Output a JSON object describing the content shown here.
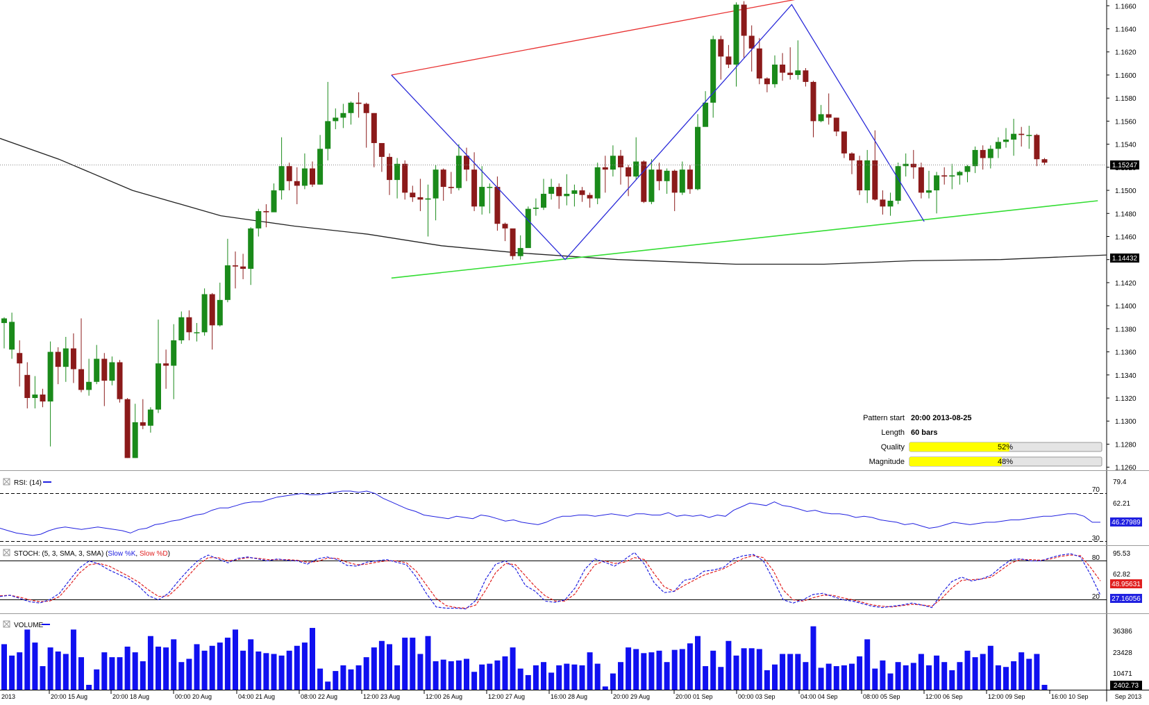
{
  "colors": {
    "bull": "#1a8a1a",
    "bear": "#8b1a1a",
    "ma": "#222222",
    "pattern": "#2b2bd9",
    "upper_line": "#e83030",
    "lower_line": "#33dd33",
    "rsi": "#2020e0",
    "stoch_k": "#2020e0",
    "stoch_d": "#e02020",
    "volume": "#1010f0",
    "bar_yellow": "#ffff00"
  },
  "price_axis": {
    "ticks": [
      "1.1660",
      "1.1640",
      "1.1620",
      "1.1600",
      "1.1580",
      "1.1560",
      "1.1540",
      "1.1520",
      "1.1500",
      "1.1480",
      "1.1460",
      "1.1440",
      "1.1420",
      "1.1400",
      "1.1380",
      "1.1360",
      "1.1340",
      "1.1320",
      "1.1300",
      "1.1280",
      "1.1260"
    ],
    "current_label": "1.15247",
    "ma_label": "1.14432"
  },
  "time_axis": {
    "labels": [
      "2013",
      "20:00 15 Aug",
      "20:00 18 Aug",
      "00:00 20 Aug",
      "04:00 21 Aug",
      "08:00 22 Aug",
      "12:00 23 Aug",
      "12:00 26 Aug",
      "12:00 27 Aug",
      "16:00 28 Aug",
      "20:00 29 Aug",
      "20:00 01 Sep",
      "00:00 03 Sep",
      "04:00 04 Sep",
      "08:00 05 Sep",
      "12:00 06 Sep",
      "12:00 09 Sep",
      "16:00 10 Sep",
      "Sep 2013"
    ]
  },
  "info": {
    "pattern_start_label": "Pattern start",
    "pattern_start_value": "20:00 2013-08-25",
    "length_label": "Length",
    "length_value": "60 bars",
    "quality_label": "Quality",
    "quality_value": "52%",
    "quality_fraction": 0.52,
    "magnitude_label": "Magnitude",
    "magnitude_value": "48%",
    "magnitude_fraction": 0.48
  },
  "rsi": {
    "title": "RSI: (14)",
    "axis": [
      "79.4",
      "62.21"
    ],
    "level_high": "70",
    "level_low": "30",
    "current": "46.27989"
  },
  "stoch": {
    "title_prefix": "STOCH: (5, 3, SMA, 3, SMA) (",
    "k_label": "Slow %K",
    "separator": ", ",
    "d_label": "Slow %D",
    "title_suffix": ")",
    "axis": [
      "95.53",
      "62.82"
    ],
    "level_high": "80",
    "level_low": "20",
    "current_d": "48.95631",
    "current_k": "27.16056"
  },
  "volume": {
    "title": "VOLUME",
    "axis": [
      "36386",
      "23428",
      "10471"
    ],
    "current": "2402.73"
  },
  "chart_data": {
    "type": "candlestick",
    "symbol_timeframe": "",
    "y_range": [
      1.1258,
      1.1665
    ],
    "current_price": 1.15247,
    "moving_average_last": 1.14432,
    "candles": [
      [
        1.1385,
        1.1389,
        1.139,
        1.1363
      ],
      [
        1.1362,
        1.1386,
        1.1394,
        1.1354
      ],
      [
        1.1359,
        1.135,
        1.137,
        1.133
      ],
      [
        1.134,
        1.132,
        1.1351,
        1.1311
      ],
      [
        1.132,
        1.1323,
        1.1339,
        1.1311
      ],
      [
        1.1323,
        1.1317,
        1.1328,
        1.1312
      ],
      [
        1.1317,
        1.136,
        1.1369,
        1.1278
      ],
      [
        1.136,
        1.1347,
        1.1364,
        1.1332
      ],
      [
        1.1347,
        1.1363,
        1.1373,
        1.1334
      ],
      [
        1.1363,
        1.1345,
        1.1376,
        1.1333
      ],
      [
        1.1345,
        1.1327,
        1.1389,
        1.1325
      ],
      [
        1.1327,
        1.1334,
        1.1354,
        1.1322
      ],
      [
        1.1334,
        1.1354,
        1.1366,
        1.1332
      ],
      [
        1.1354,
        1.1335,
        1.1359,
        1.1313
      ],
      [
        1.1335,
        1.1351,
        1.1356,
        1.1331
      ],
      [
        1.1351,
        1.1319,
        1.1353,
        1.1316
      ],
      [
        1.1319,
        1.1268,
        1.132,
        1.1268
      ],
      [
        1.1268,
        1.1299,
        1.1315,
        1.1268
      ],
      [
        1.1299,
        1.1296,
        1.1319,
        1.1293
      ],
      [
        1.1296,
        1.131,
        1.1312,
        1.129
      ],
      [
        1.131,
        1.135,
        1.1388,
        1.1307
      ],
      [
        1.135,
        1.1348,
        1.1362,
        1.1328
      ],
      [
        1.1348,
        1.137,
        1.1384,
        1.1319
      ],
      [
        1.137,
        1.139,
        1.1395,
        1.1367
      ],
      [
        1.139,
        1.1377,
        1.1396,
        1.137
      ],
      [
        1.1377,
        1.1377,
        1.1385,
        1.1369
      ],
      [
        1.1377,
        1.141,
        1.1415,
        1.1374
      ],
      [
        1.141,
        1.1383,
        1.1411,
        1.1362
      ],
      [
        1.1383,
        1.1405,
        1.142,
        1.1382
      ],
      [
        1.1405,
        1.1435,
        1.1458,
        1.1403
      ],
      [
        1.1435,
        1.1434,
        1.1447,
        1.1415
      ],
      [
        1.1434,
        1.1432,
        1.1445,
        1.1423
      ],
      [
        1.1432,
        1.1467,
        1.1468,
        1.1418
      ],
      [
        1.1467,
        1.1482,
        1.1484,
        1.146
      ],
      [
        1.1482,
        1.1481,
        1.1488,
        1.1468
      ],
      [
        1.1481,
        1.15,
        1.1506,
        1.149
      ],
      [
        1.15,
        1.1521,
        1.1546,
        1.1492
      ],
      [
        1.1521,
        1.1508,
        1.1524,
        1.15
      ],
      [
        1.1508,
        1.1504,
        1.152,
        1.1488
      ],
      [
        1.1504,
        1.1519,
        1.1532,
        1.1501
      ],
      [
        1.1519,
        1.1505,
        1.1525,
        1.1503
      ],
      [
        1.1505,
        1.1536,
        1.1548,
        1.1505
      ],
      [
        1.1536,
        1.156,
        1.1594,
        1.1526
      ],
      [
        1.156,
        1.1563,
        1.1571,
        1.1553
      ],
      [
        1.1563,
        1.1567,
        1.1575,
        1.1554
      ],
      [
        1.1567,
        1.1576,
        1.1577,
        1.1557
      ],
      [
        1.1576,
        1.1575,
        1.1585,
        1.1563
      ],
      [
        1.1575,
        1.1567,
        1.1576,
        1.1537
      ],
      [
        1.1567,
        1.1541,
        1.1567,
        1.152
      ],
      [
        1.1541,
        1.1529,
        1.154,
        1.1516
      ],
      [
        1.1529,
        1.1509,
        1.1532,
        1.1496
      ],
      [
        1.1509,
        1.1523,
        1.1528,
        1.1493
      ],
      [
        1.1523,
        1.1498,
        1.1526,
        1.1492
      ],
      [
        1.1498,
        1.1494,
        1.1504,
        1.149
      ],
      [
        1.1494,
        1.1492,
        1.151,
        1.1482
      ],
      [
        1.1492,
        1.1493,
        1.1505,
        1.146
      ],
      [
        1.1493,
        1.1518,
        1.1522,
        1.1474
      ],
      [
        1.1518,
        1.1503,
        1.1519,
        1.1491
      ],
      [
        1.1503,
        1.1502,
        1.1516,
        1.1497
      ],
      [
        1.1502,
        1.153,
        1.154,
        1.15
      ],
      [
        1.153,
        1.1518,
        1.1537,
        1.1508
      ],
      [
        1.1518,
        1.1486,
        1.1533,
        1.1482
      ],
      [
        1.1486,
        1.1503,
        1.1521,
        1.1479
      ],
      [
        1.1503,
        1.1503,
        1.1506,
        1.148
      ],
      [
        1.1503,
        1.1471,
        1.1512,
        1.1465
      ],
      [
        1.1471,
        1.1467,
        1.1472,
        1.1456
      ],
      [
        1.1467,
        1.1443,
        1.1461,
        1.144
      ],
      [
        1.1443,
        1.145,
        1.1461,
        1.144
      ],
      [
        1.145,
        1.1484,
        1.1486,
        1.1452
      ],
      [
        1.1484,
        1.1485,
        1.1493,
        1.1478
      ],
      [
        1.1485,
        1.1497,
        1.151,
        1.1483
      ],
      [
        1.1497,
        1.1503,
        1.151,
        1.1492
      ],
      [
        1.1503,
        1.1495,
        1.1506,
        1.1484
      ],
      [
        1.1495,
        1.1497,
        1.1514,
        1.1487
      ],
      [
        1.1497,
        1.15,
        1.1505,
        1.1486
      ],
      [
        1.15,
        1.1496,
        1.1503,
        1.149
      ],
      [
        1.1496,
        1.1493,
        1.1498,
        1.1485
      ],
      [
        1.1493,
        1.152,
        1.1524,
        1.1488
      ],
      [
        1.152,
        1.1518,
        1.153,
        1.1498
      ],
      [
        1.1518,
        1.153,
        1.1539,
        1.1512
      ],
      [
        1.153,
        1.152,
        1.1535,
        1.1505
      ],
      [
        1.152,
        1.1512,
        1.1522,
        1.1495
      ],
      [
        1.1512,
        1.1525,
        1.1546,
        1.1509
      ],
      [
        1.1525,
        1.149,
        1.1526,
        1.1489
      ],
      [
        1.149,
        1.1518,
        1.1527,
        1.1488
      ],
      [
        1.1518,
        1.1508,
        1.1524,
        1.15
      ],
      [
        1.1508,
        1.1517,
        1.1519,
        1.1497
      ],
      [
        1.1517,
        1.1498,
        1.1518,
        1.1482
      ],
      [
        1.1498,
        1.1518,
        1.1525,
        1.1496
      ],
      [
        1.1518,
        1.1501,
        1.1522,
        1.1497
      ],
      [
        1.1501,
        1.1555,
        1.1566,
        1.15
      ],
      [
        1.1555,
        1.1576,
        1.1586,
        1.1556
      ],
      [
        1.1576,
        1.1631,
        1.1634,
        1.1563
      ],
      [
        1.1631,
        1.1616,
        1.1634,
        1.1596
      ],
      [
        1.1616,
        1.1609,
        1.1626,
        1.1606
      ],
      [
        1.1609,
        1.1661,
        1.1663,
        1.159
      ],
      [
        1.1661,
        1.1634,
        1.1664,
        1.1615
      ],
      [
        1.1634,
        1.1623,
        1.1643,
        1.1603
      ],
      [
        1.1623,
        1.1597,
        1.1632,
        1.1592
      ],
      [
        1.1597,
        1.1592,
        1.1598,
        1.1585
      ],
      [
        1.1592,
        1.1609,
        1.1617,
        1.1589
      ],
      [
        1.1609,
        1.1602,
        1.1619,
        1.1595
      ],
      [
        1.1602,
        1.16,
        1.1624,
        1.1596
      ],
      [
        1.16,
        1.1604,
        1.163,
        1.1596
      ],
      [
        1.1604,
        1.1594,
        1.1606,
        1.159
      ],
      [
        1.1594,
        1.156,
        1.1595,
        1.1546
      ],
      [
        1.156,
        1.1566,
        1.1574,
        1.1559
      ],
      [
        1.1566,
        1.1563,
        1.1584,
        1.1557
      ],
      [
        1.1563,
        1.1551,
        1.1563,
        1.1547
      ],
      [
        1.1551,
        1.1532,
        1.1551,
        1.1528
      ],
      [
        1.1532,
        1.1526,
        1.1533,
        1.1514
      ],
      [
        1.1526,
        1.15,
        1.153,
        1.1496
      ],
      [
        1.15,
        1.1526,
        1.1535,
        1.1489
      ],
      [
        1.1526,
        1.1492,
        1.1552,
        1.1491
      ],
      [
        1.1492,
        1.1486,
        1.15,
        1.1479
      ],
      [
        1.1486,
        1.1491,
        1.1498,
        1.1478
      ],
      [
        1.1491,
        1.1521,
        1.1524,
        1.1488
      ],
      [
        1.1521,
        1.1523,
        1.1532,
        1.1512
      ],
      [
        1.1523,
        1.152,
        1.1535,
        1.151
      ],
      [
        1.152,
        1.1498,
        1.1524,
        1.1493
      ],
      [
        1.1498,
        1.15,
        1.1517,
        1.1493
      ],
      [
        1.15,
        1.1513,
        1.1516,
        1.148
      ],
      [
        1.1513,
        1.1512,
        1.152,
        1.1505
      ],
      [
        1.1512,
        1.1513,
        1.1523,
        1.1501
      ],
      [
        1.1513,
        1.1516,
        1.1517,
        1.1505
      ],
      [
        1.1516,
        1.1521,
        1.1522,
        1.1507
      ],
      [
        1.1521,
        1.1535,
        1.1538,
        1.1515
      ],
      [
        1.1535,
        1.1528,
        1.1539,
        1.1518
      ],
      [
        1.1528,
        1.1536,
        1.1539,
        1.1519
      ],
      [
        1.1536,
        1.1542,
        1.1546,
        1.1528
      ],
      [
        1.1542,
        1.1544,
        1.1554,
        1.1537
      ],
      [
        1.1544,
        1.1549,
        1.1562,
        1.153
      ],
      [
        1.1549,
        1.1548,
        1.1555,
        1.1538
      ],
      [
        1.1548,
        1.1548,
        1.1556,
        1.1536
      ],
      [
        1.1548,
        1.1527,
        1.1549,
        1.1521
      ],
      [
        1.1527,
        1.1524,
        1.1528,
        1.1522
      ]
    ],
    "moving_average": [
      [
        0,
        1.1545
      ],
      [
        20,
        1.1527
      ],
      [
        45,
        1.15
      ],
      [
        75,
        1.1478
      ],
      [
        100,
        1.1469
      ],
      [
        125,
        1.1462
      ],
      [
        150,
        1.1452
      ],
      [
        175,
        1.1446
      ],
      [
        210,
        1.144
      ],
      [
        250,
        1.1436
      ],
      [
        280,
        1.1436
      ],
      [
        310,
        1.1439
      ],
      [
        340,
        1.144
      ],
      [
        376,
        1.1444
      ]
    ],
    "pattern_points": [
      [
        133,
        1.16
      ],
      [
        192,
        1.144
      ],
      [
        269,
        1.1661
      ],
      [
        314,
        1.1473
      ]
    ],
    "upper_trendline": [
      [
        133,
        1.16
      ],
      [
        284,
        1.1672
      ]
    ],
    "lower_trendline": [
      [
        133,
        1.1424
      ],
      [
        373,
        1.1491
      ]
    ],
    "rsi_values": [
      41,
      39,
      37,
      36,
      35,
      36,
      39,
      41,
      42,
      41,
      40,
      41,
      42,
      41,
      40,
      39,
      37,
      40,
      41,
      44,
      45,
      47,
      48,
      50,
      52,
      53,
      56,
      58,
      58,
      60,
      62,
      63,
      63,
      65,
      67,
      68,
      69,
      70,
      69,
      69,
      70,
      71,
      72,
      72,
      71,
      72,
      70,
      66,
      63,
      60,
      57,
      55,
      52,
      51,
      50,
      49,
      51,
      50,
      49,
      52,
      51,
      49,
      47,
      48,
      46,
      45,
      44,
      46,
      49,
      51,
      51,
      52,
      52,
      51,
      52,
      53,
      52,
      51,
      53,
      53,
      52,
      52,
      54,
      51,
      52,
      51,
      52,
      50,
      52,
      51,
      56,
      59,
      62,
      61,
      60,
      63,
      60,
      59,
      57,
      55,
      56,
      54,
      53,
      53,
      52,
      50,
      51,
      50,
      48,
      47,
      46,
      44,
      45,
      43,
      41,
      42,
      44,
      46,
      45,
      44,
      45,
      46,
      46,
      47,
      48,
      48,
      49,
      50,
      51,
      51,
      52,
      53,
      53,
      51,
      46,
      46
    ],
    "stoch_k": [
      25,
      27,
      22,
      17,
      15,
      20,
      30,
      50,
      69,
      80,
      75,
      66,
      59,
      52,
      41,
      26,
      20,
      30,
      49,
      66,
      81,
      89,
      83,
      77,
      84,
      86,
      83,
      80,
      83,
      81,
      80,
      75,
      83,
      86,
      82,
      73,
      72,
      78,
      80,
      82,
      78,
      74,
      55,
      30,
      9,
      7,
      7,
      6,
      19,
      52,
      75,
      80,
      68,
      42,
      33,
      18,
      16,
      20,
      38,
      67,
      83,
      78,
      72,
      82,
      93,
      75,
      46,
      31,
      33,
      50,
      53,
      64,
      66,
      70,
      83,
      88,
      90,
      80,
      51,
      20,
      15,
      20,
      28,
      30,
      25,
      20,
      18,
      14,
      10,
      8,
      10,
      12,
      15,
      12,
      8,
      30,
      48,
      55,
      49,
      52,
      58,
      71,
      82,
      83,
      80,
      80,
      85,
      89,
      91,
      86,
      59,
      27
    ],
    "stoch_d": [
      26,
      27,
      24,
      20,
      17,
      18,
      25,
      42,
      61,
      74,
      76,
      72,
      64,
      56,
      47,
      35,
      25,
      26,
      40,
      57,
      74,
      85,
      85,
      80,
      82,
      85,
      84,
      82,
      82,
      82,
      81,
      78,
      79,
      84,
      84,
      78,
      74,
      75,
      78,
      80,
      80,
      77,
      64,
      43,
      22,
      11,
      8,
      7,
      12,
      35,
      62,
      76,
      74,
      57,
      40,
      26,
      18,
      18,
      29,
      53,
      74,
      80,
      76,
      78,
      85,
      82,
      60,
      40,
      33,
      42,
      50,
      58,
      63,
      68,
      76,
      84,
      88,
      85,
      65,
      35,
      20,
      18,
      23,
      27,
      27,
      23,
      20,
      16,
      12,
      10,
      9,
      11,
      13,
      12,
      10,
      22,
      38,
      50,
      51,
      52,
      55,
      66,
      77,
      82,
      82,
      81,
      83,
      87,
      89,
      88,
      70,
      49
    ],
    "volume_values": [
      28000,
      21000,
      23000,
      37000,
      29000,
      14500,
      26000,
      23500,
      22000,
      37000,
      20000,
      3000,
      12500,
      23000,
      20000,
      20000,
      26500,
      23000,
      17500,
      33000,
      26500,
      26000,
      31000,
      17000,
      19000,
      28000,
      24000,
      27000,
      29000,
      32000,
      37000,
      24000,
      31000,
      23500,
      22500,
      22000,
      21000,
      24000,
      27000,
      29000,
      38000,
      13000,
      5000,
      11500,
      15000,
      12500,
      15000,
      20000,
      26000,
      30000,
      28000,
      15000,
      32000,
      32000,
      22000,
      33000,
      17500,
      18500,
      17500,
      18000,
      19000,
      11000,
      15500,
      16000,
      18000,
      20500,
      26000,
      13000,
      9000,
      15000,
      17000,
      10500,
      15000,
      16000,
      15500,
      15000,
      23000,
      16000,
      2000,
      10000,
      17000,
      26000,
      25000,
      22500,
      23000,
      24000,
      17000,
      24500,
      25000,
      28500,
      33000,
      14500,
      24000,
      14000,
      30000,
      21000,
      25500,
      25500,
      25000,
      12000,
      15500,
      22000,
      22000,
      22000,
      17000,
      39000,
      13500,
      16000,
      14500,
      15000,
      16000,
      20500,
      31000,
      13000,
      18000,
      10000,
      17000,
      15000,
      16500,
      22000,
      15000,
      21000,
      17000,
      12000,
      17000,
      24000,
      20000,
      22000,
      27000,
      15000,
      14000,
      17500,
      23000,
      19000,
      22000,
      3000
    ]
  }
}
